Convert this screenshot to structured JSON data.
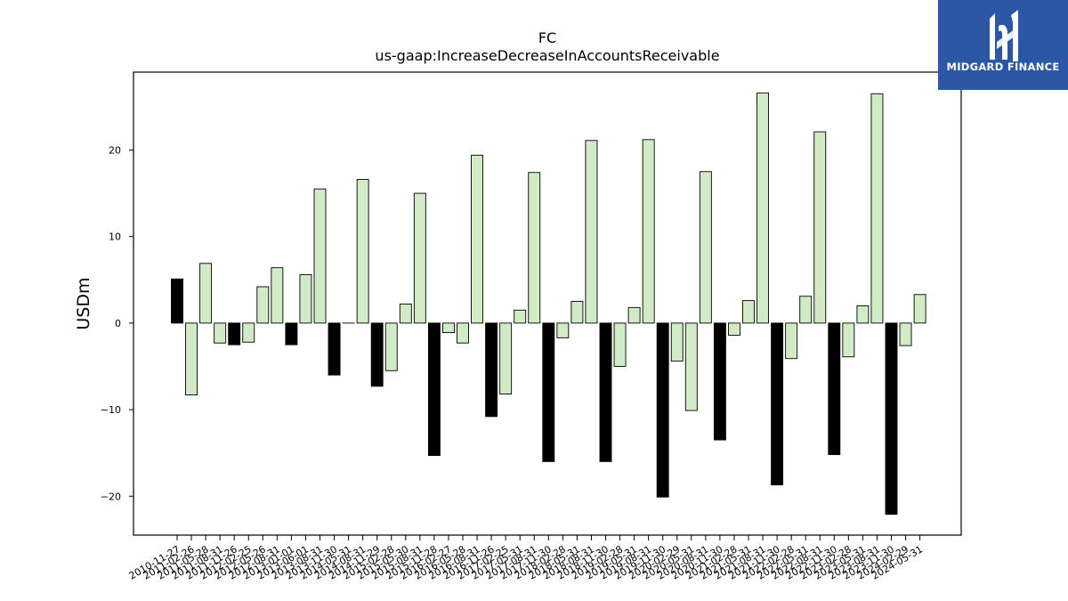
{
  "brand": {
    "name": "MIDGARD FINANCE",
    "bg_color": "#2b57a5"
  },
  "colors": {
    "positive_bar": "#d0ebc5",
    "negative_bar": "#000000",
    "edge": "#000000"
  },
  "chart_data": {
    "type": "bar",
    "title": "FC",
    "subtitle": "us-gaap:IncreaseDecreaseInAccountsReceivable",
    "xlabel": "",
    "ylabel": "USDm",
    "ylim": [
      -24.5,
      29
    ],
    "yticks": [
      -20,
      -10,
      0,
      10,
      20
    ],
    "grid": false,
    "categories": [
      "2010-11-27",
      "2011-02-26",
      "2011-05-28",
      "2011-08-31",
      "2011-11-26",
      "2012-02-25",
      "2012-05-26",
      "2012-08-31",
      "2013-01-01",
      "2013-06-01",
      "2013-08-31",
      "2013-11-30",
      "2014-05-31",
      "2014-08-31",
      "2014-11-29",
      "2015-02-28",
      "2015-05-30",
      "2015-08-31",
      "2015-11-28",
      "2016-02-27",
      "2016-05-28",
      "2016-08-31",
      "2016-11-26",
      "2017-02-25",
      "2017-05-31",
      "2017-08-31",
      "2017-11-30",
      "2018-02-28",
      "2018-05-31",
      "2018-08-31",
      "2018-11-30",
      "2019-02-28",
      "2019-05-31",
      "2019-08-31",
      "2019-11-30",
      "2020-02-29",
      "2020-05-31",
      "2020-08-31",
      "2020-11-30",
      "2021-02-28",
      "2021-05-31",
      "2021-08-31",
      "2021-11-30",
      "2022-02-28",
      "2022-05-31",
      "2022-08-31",
      "2022-11-30",
      "2023-02-28",
      "2023-05-31",
      "2023-08-31",
      "2023-11-30",
      "2024-02-29",
      "2024-05-31"
    ],
    "values": [
      5.1,
      -8.3,
      6.9,
      -2.3,
      -2.5,
      -2.2,
      4.2,
      6.4,
      -2.5,
      5.6,
      15.5,
      -6.0,
      0,
      16.6,
      -7.3,
      -5.5,
      2.2,
      15.0,
      -15.3,
      -1.1,
      -2.3,
      19.4,
      -10.8,
      -8.2,
      1.5,
      17.4,
      -16.0,
      -1.7,
      2.5,
      21.1,
      -16.0,
      -5.0,
      1.8,
      21.2,
      -20.1,
      -4.4,
      -10.1,
      17.5,
      -13.5,
      -1.4,
      2.6,
      26.6,
      -18.7,
      -4.1,
      3.1,
      22.1,
      -15.2,
      -3.9,
      2.0,
      26.5,
      -22.1,
      -2.6,
      3.3
    ],
    "annual_markers": [
      1,
      0,
      0,
      0,
      1,
      0,
      0,
      0,
      1,
      0,
      0,
      1,
      0,
      0,
      1,
      0,
      0,
      0,
      1,
      0,
      0,
      0,
      1,
      0,
      0,
      0,
      1,
      0,
      0,
      0,
      1,
      0,
      0,
      0,
      1,
      0,
      0,
      0,
      1,
      0,
      0,
      0,
      1,
      0,
      0,
      0,
      1,
      0,
      0,
      0,
      1,
      0,
      0
    ]
  }
}
